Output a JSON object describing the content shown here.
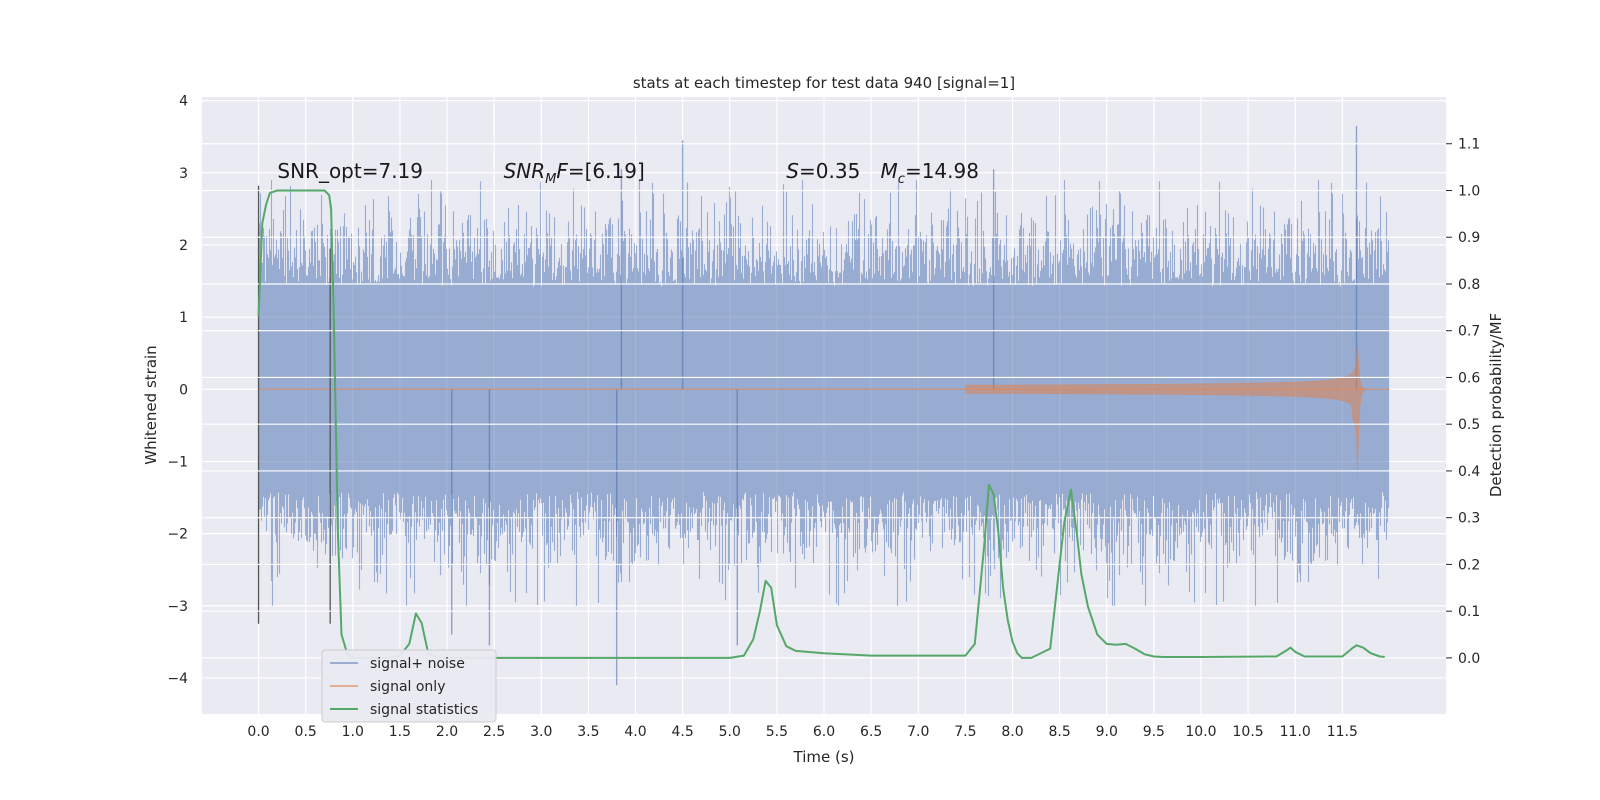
{
  "chart_data": {
    "type": "line",
    "title": "stats at each timestep for test data 940 [signal=1]",
    "xlabel": "Time (s)",
    "ylabel_left": "Whitened strain",
    "ylabel_right": "Detection probability/MF",
    "xlim": [
      -0.6,
      12.6
    ],
    "ylim_left": [
      -4.5,
      4.05
    ],
    "ylim_right": [
      -0.12,
      1.2
    ],
    "x_ticks": [
      0.0,
      0.5,
      1.0,
      1.5,
      2.0,
      2.5,
      3.0,
      3.5,
      4.0,
      4.5,
      5.0,
      5.5,
      6.0,
      6.5,
      7.0,
      7.5,
      8.0,
      8.5,
      9.0,
      9.5,
      10.0,
      10.5,
      11.0,
      11.5
    ],
    "x_tick_labels": [
      "0.0",
      "0.5",
      "1.0",
      "1.5",
      "2.0",
      "2.5",
      "3.0",
      "3.5",
      "4.0",
      "4.5",
      "5.0",
      "5.5",
      "6.0",
      "6.5",
      "7.0",
      "7.5",
      "8.0",
      "8.5",
      "9.0",
      "9.5",
      "10.0",
      "10.5",
      "11.0",
      "11.5"
    ],
    "y_ticks_left": [
      -4,
      -3,
      -2,
      -1,
      0,
      1,
      2,
      3,
      4
    ],
    "y_tick_labels_left": [
      "−4",
      "−3",
      "−2",
      "−1",
      "0",
      "1",
      "2",
      "3",
      "4"
    ],
    "y_ticks_right": [
      0.0,
      0.1,
      0.2,
      0.3,
      0.4,
      0.5,
      0.6,
      0.7,
      0.8,
      0.9,
      1.0,
      1.1
    ],
    "y_tick_labels_right": [
      "0.0",
      "0.1",
      "0.2",
      "0.3",
      "0.4",
      "0.5",
      "0.6",
      "0.7",
      "0.8",
      "0.9",
      "1.0",
      "1.1"
    ],
    "grid": true,
    "legend_position": "bottom-left",
    "annotations": [
      {
        "text": "SNR_opt=7.19",
        "x": 0.2,
        "y": 2.93
      },
      {
        "text": "SNR_MF=[6.19]",
        "x": 2.6,
        "y": 2.93
      },
      {
        "text": "S=0.35",
        "x": 5.6,
        "y": 2.93
      },
      {
        "text": "M_c=14.98",
        "x": 6.6,
        "y": 2.93
      }
    ],
    "vertical_markers": [
      {
        "x": 0.0,
        "y_range": [
          -3.25,
          2.82
        ]
      },
      {
        "x": 0.76,
        "y_range": [
          -3.25,
          1.95
        ]
      }
    ],
    "series": [
      {
        "name": "signal+ noise",
        "axis": "left",
        "color": "#4c72b0",
        "description_type": "noise",
        "x_range": [
          0.0,
          12.0
        ],
        "typical_amplitude": 1.5,
        "outliers": [
          {
            "x": 4.5,
            "y": 3.45
          },
          {
            "x": 11.65,
            "y": 3.65
          },
          {
            "x": 3.8,
            "y": -4.1
          },
          {
            "x": 2.45,
            "y": -3.55
          },
          {
            "x": 5.08,
            "y": -3.55
          },
          {
            "x": 2.05,
            "y": -3.4
          },
          {
            "x": 3.85,
            "y": 3.05
          },
          {
            "x": 7.8,
            "y": 3.05
          }
        ]
      },
      {
        "name": "signal only",
        "axis": "left",
        "color": "#dd8452",
        "description_type": "chirp",
        "x_range": [
          0.0,
          12.0
        ],
        "chirp_start": 7.5,
        "merger_time": 11.65,
        "peak_amplitude": 1.25
      },
      {
        "name": "signal statistics",
        "axis": "right",
        "color": "#55a868",
        "x": [
          0.0,
          0.04,
          0.08,
          0.12,
          0.2,
          0.3,
          0.45,
          0.6,
          0.7,
          0.75,
          0.77,
          0.8,
          0.84,
          0.88,
          0.94,
          1.0,
          1.2,
          1.4,
          1.5,
          1.6,
          1.67,
          1.73,
          1.8,
          1.9,
          2.0,
          3.0,
          4.0,
          5.0,
          5.15,
          5.25,
          5.32,
          5.38,
          5.44,
          5.5,
          5.6,
          5.7,
          6.0,
          6.5,
          7.0,
          7.5,
          7.6,
          7.7,
          7.75,
          7.8,
          7.85,
          7.9,
          7.95,
          8.0,
          8.05,
          8.1,
          8.2,
          8.4,
          8.5,
          8.55,
          8.62,
          8.68,
          8.73,
          8.8,
          8.9,
          9.0,
          9.1,
          9.2,
          9.3,
          9.4,
          9.5,
          9.6,
          10.0,
          10.8,
          10.9,
          10.95,
          11.0,
          11.1,
          11.5,
          11.6,
          11.65,
          11.72,
          11.8,
          11.9,
          11.95
        ],
        "y": [
          0.73,
          0.93,
          0.97,
          0.995,
          1.0,
          1.0,
          1.0,
          1.0,
          1.0,
          0.99,
          0.96,
          0.72,
          0.28,
          0.05,
          0.01,
          0.0,
          0.0,
          0.0,
          0.005,
          0.03,
          0.095,
          0.075,
          0.01,
          0.0,
          0.0,
          0.0,
          0.0,
          0.0,
          0.005,
          0.04,
          0.1,
          0.165,
          0.15,
          0.07,
          0.025,
          0.015,
          0.01,
          0.005,
          0.005,
          0.005,
          0.03,
          0.24,
          0.37,
          0.35,
          0.27,
          0.15,
          0.08,
          0.035,
          0.01,
          0.0,
          0.0,
          0.02,
          0.2,
          0.29,
          0.36,
          0.27,
          0.18,
          0.11,
          0.05,
          0.03,
          0.028,
          0.03,
          0.02,
          0.008,
          0.003,
          0.002,
          0.002,
          0.003,
          0.015,
          0.022,
          0.013,
          0.003,
          0.003,
          0.02,
          0.027,
          0.022,
          0.01,
          0.003,
          0.002
        ]
      }
    ]
  }
}
